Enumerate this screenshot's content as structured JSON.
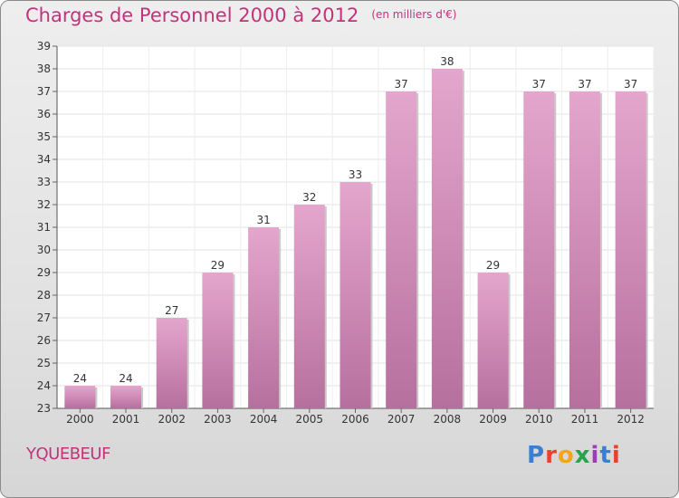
{
  "header": {
    "title": "Charges de Personnel 2000 à 2012",
    "subtitle": "(en milliers d'€)"
  },
  "footer": {
    "location": "YQUEBEUF",
    "logo_text": "Proxiti"
  },
  "colors": {
    "title": "#c2337c",
    "bar_top": "#e4a6cd",
    "bar_bottom": "#b6709d"
  },
  "chart_data": {
    "type": "bar",
    "title": "Charges de Personnel 2000 à 2012",
    "subtitle": "(en milliers d'€)",
    "categories": [
      "2000",
      "2001",
      "2002",
      "2003",
      "2004",
      "2005",
      "2006",
      "2007",
      "2008",
      "2009",
      "2010",
      "2011",
      "2012"
    ],
    "values": [
      24,
      24,
      27,
      29,
      31,
      32,
      33,
      37,
      38,
      29,
      37,
      37,
      37
    ],
    "ylim": [
      23,
      39
    ],
    "yticks": [
      23,
      24,
      25,
      26,
      27,
      28,
      29,
      30,
      31,
      32,
      33,
      34,
      35,
      36,
      37,
      38,
      39
    ],
    "grid": true,
    "data_labels": true
  }
}
